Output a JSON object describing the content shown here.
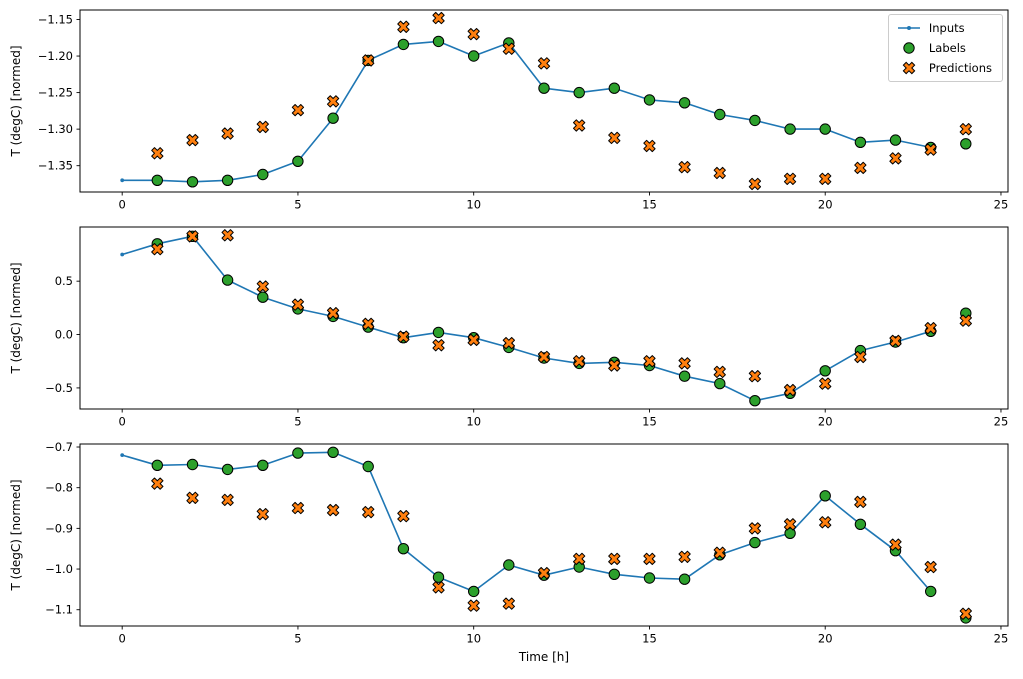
{
  "figure": {
    "xlabel": "Time [h]",
    "background": "#ffffff",
    "axes_edge_color": "#000000",
    "legend": {
      "items": [
        {
          "label": "Inputs",
          "marker": "line-with-dot",
          "color": "#1f77b4"
        },
        {
          "label": "Labels",
          "marker": "circle",
          "color": "#2ca02c",
          "edge": "#000000"
        },
        {
          "label": "Predictions",
          "marker": "X",
          "color": "#ff7f0e",
          "edge": "#000000"
        }
      ]
    }
  },
  "chart_data": [
    {
      "type": "line",
      "title": "",
      "xlabel": "",
      "ylabel": "T (degC) [normed]",
      "xlim": [
        -1.2,
        25.2
      ],
      "ylim": [
        -1.386,
        -1.137
      ],
      "xticks": {
        "values": [
          0,
          5,
          10,
          15,
          20,
          25
        ],
        "labels": [
          "0",
          "5",
          "10",
          "15",
          "20",
          "25"
        ]
      },
      "yticks": {
        "values": [
          -1.15,
          -1.2,
          -1.25,
          -1.3,
          -1.35
        ],
        "labels": [
          "−1.15",
          "−1.20",
          "−1.25",
          "−1.30",
          "−1.35"
        ]
      },
      "grid": false,
      "legend_position": "upper right",
      "series": [
        {
          "name": "Inputs",
          "plot": "line",
          "color": "#1f77b4",
          "x": [
            0,
            1,
            2,
            3,
            4,
            5,
            6,
            7,
            8,
            9,
            10,
            11,
            12,
            13,
            14,
            15,
            16,
            17,
            18,
            19,
            20,
            21,
            22,
            23
          ],
          "y": [
            -1.37,
            -1.37,
            -1.372,
            -1.37,
            -1.362,
            -1.344,
            -1.285,
            -1.206,
            -1.184,
            -1.18,
            -1.2,
            -1.182,
            -1.244,
            -1.25,
            -1.244,
            -1.26,
            -1.264,
            -1.28,
            -1.288,
            -1.3,
            -1.3,
            -1.318,
            -1.315,
            -1.325
          ]
        },
        {
          "name": "Labels",
          "plot": "scatter",
          "marker": "circle",
          "color": "#2ca02c",
          "edge": "#000000",
          "x": [
            1,
            2,
            3,
            4,
            5,
            6,
            7,
            8,
            9,
            10,
            11,
            12,
            13,
            14,
            15,
            16,
            17,
            18,
            19,
            20,
            21,
            22,
            23,
            24
          ],
          "y": [
            -1.37,
            -1.372,
            -1.37,
            -1.362,
            -1.344,
            -1.285,
            -1.206,
            -1.184,
            -1.18,
            -1.2,
            -1.182,
            -1.244,
            -1.25,
            -1.244,
            -1.26,
            -1.264,
            -1.28,
            -1.288,
            -1.3,
            -1.3,
            -1.318,
            -1.315,
            -1.325,
            -1.32
          ]
        },
        {
          "name": "Predictions",
          "plot": "scatter",
          "marker": "X",
          "color": "#ff7f0e",
          "edge": "#000000",
          "x": [
            1,
            2,
            3,
            4,
            5,
            6,
            7,
            8,
            9,
            10,
            11,
            12,
            13,
            14,
            15,
            16,
            17,
            18,
            19,
            20,
            21,
            22,
            23,
            24
          ],
          "y": [
            -1.333,
            -1.315,
            -1.306,
            -1.297,
            -1.274,
            -1.262,
            -1.206,
            -1.16,
            -1.148,
            -1.17,
            -1.19,
            -1.21,
            -1.295,
            -1.312,
            -1.323,
            -1.352,
            -1.36,
            -1.375,
            -1.368,
            -1.368,
            -1.353,
            -1.34,
            -1.328,
            -1.3
          ]
        }
      ]
    },
    {
      "type": "line",
      "title": "",
      "xlabel": "",
      "ylabel": "T (degC) [normed]",
      "xlim": [
        -1.2,
        25.2
      ],
      "ylim": [
        -0.6975,
        1.0075
      ],
      "xticks": {
        "values": [
          0,
          5,
          10,
          15,
          20,
          25
        ],
        "labels": [
          "0",
          "5",
          "10",
          "15",
          "20",
          "25"
        ]
      },
      "yticks": {
        "values": [
          0.5,
          0.0,
          -0.5
        ],
        "labels": [
          "0.5",
          "0.0",
          "−0.5"
        ]
      },
      "grid": false,
      "series": [
        {
          "name": "Inputs",
          "plot": "line",
          "color": "#1f77b4",
          "x": [
            0,
            1,
            2,
            3,
            4,
            5,
            6,
            7,
            8,
            9,
            10,
            11,
            12,
            13,
            14,
            15,
            16,
            17,
            18,
            19,
            20,
            21,
            22,
            23
          ],
          "y": [
            0.75,
            0.85,
            0.92,
            0.51,
            0.35,
            0.24,
            0.17,
            0.07,
            -0.03,
            0.02,
            -0.03,
            -0.12,
            -0.22,
            -0.27,
            -0.26,
            -0.29,
            -0.39,
            -0.46,
            -0.62,
            -0.55,
            -0.34,
            -0.15,
            -0.07,
            0.03
          ]
        },
        {
          "name": "Labels",
          "plot": "scatter",
          "marker": "circle",
          "color": "#2ca02c",
          "edge": "#000000",
          "x": [
            1,
            2,
            3,
            4,
            5,
            6,
            7,
            8,
            9,
            10,
            11,
            12,
            13,
            14,
            15,
            16,
            17,
            18,
            19,
            20,
            21,
            22,
            23,
            24
          ],
          "y": [
            0.85,
            0.92,
            0.51,
            0.35,
            0.24,
            0.17,
            0.07,
            -0.03,
            0.02,
            -0.03,
            -0.12,
            -0.22,
            -0.27,
            -0.26,
            -0.29,
            -0.39,
            -0.46,
            -0.62,
            -0.55,
            -0.34,
            -0.15,
            -0.07,
            0.03,
            0.2
          ]
        },
        {
          "name": "Predictions",
          "plot": "scatter",
          "marker": "X",
          "color": "#ff7f0e",
          "edge": "#000000",
          "x": [
            1,
            2,
            3,
            4,
            5,
            6,
            7,
            8,
            9,
            10,
            11,
            12,
            13,
            14,
            15,
            16,
            17,
            18,
            19,
            20,
            21,
            22,
            23,
            24
          ],
          "y": [
            0.8,
            0.92,
            0.93,
            0.45,
            0.28,
            0.2,
            0.1,
            -0.02,
            -0.1,
            -0.05,
            -0.08,
            -0.21,
            -0.25,
            -0.29,
            -0.25,
            -0.27,
            -0.35,
            -0.39,
            -0.52,
            -0.46,
            -0.21,
            -0.06,
            0.06,
            0.13
          ]
        }
      ]
    },
    {
      "type": "line",
      "title": "",
      "xlabel": "Time [h]",
      "ylabel": "T (degC) [normed]",
      "xlim": [
        -1.2,
        25.2
      ],
      "ylim": [
        -1.14,
        -0.6926
      ],
      "xticks": {
        "values": [
          0,
          5,
          10,
          15,
          20,
          25
        ],
        "labels": [
          "0",
          "5",
          "10",
          "15",
          "20",
          "25"
        ]
      },
      "yticks": {
        "values": [
          -0.7,
          -0.8,
          -0.9,
          -1.0,
          -1.1
        ],
        "labels": [
          "−0.7",
          "−0.8",
          "−0.9",
          "−1.0",
          "−1.1"
        ]
      },
      "grid": false,
      "series": [
        {
          "name": "Inputs",
          "plot": "line",
          "color": "#1f77b4",
          "x": [
            0,
            1,
            2,
            3,
            4,
            5,
            6,
            7,
            8,
            9,
            10,
            11,
            12,
            13,
            14,
            15,
            16,
            17,
            18,
            19,
            20,
            21,
            22,
            23
          ],
          "y": [
            -0.72,
            -0.745,
            -0.743,
            -0.755,
            -0.745,
            -0.715,
            -0.713,
            -0.748,
            -0.95,
            -1.02,
            -1.055,
            -0.99,
            -1.015,
            -0.995,
            -1.013,
            -1.022,
            -1.025,
            -0.965,
            -0.935,
            -0.912,
            -0.82,
            -0.89,
            -0.955,
            -1.055
          ]
        },
        {
          "name": "Labels",
          "plot": "scatter",
          "marker": "circle",
          "color": "#2ca02c",
          "edge": "#000000",
          "x": [
            1,
            2,
            3,
            4,
            5,
            6,
            7,
            8,
            9,
            10,
            11,
            12,
            13,
            14,
            15,
            16,
            17,
            18,
            19,
            20,
            21,
            22,
            23,
            24
          ],
          "y": [
            -0.745,
            -0.743,
            -0.755,
            -0.745,
            -0.715,
            -0.713,
            -0.748,
            -0.95,
            -1.02,
            -1.055,
            -0.99,
            -1.015,
            -0.995,
            -1.013,
            -1.022,
            -1.025,
            -0.965,
            -0.935,
            -0.912,
            -0.82,
            -0.89,
            -0.955,
            -1.055,
            -1.12
          ]
        },
        {
          "name": "Predictions",
          "plot": "scatter",
          "marker": "X",
          "color": "#ff7f0e",
          "edge": "#000000",
          "x": [
            1,
            2,
            3,
            4,
            5,
            6,
            7,
            8,
            9,
            10,
            11,
            12,
            13,
            14,
            15,
            16,
            17,
            18,
            19,
            20,
            21,
            22,
            23,
            24
          ],
          "y": [
            -0.79,
            -0.825,
            -0.83,
            -0.865,
            -0.85,
            -0.855,
            -0.86,
            -0.87,
            -1.045,
            -1.09,
            -1.085,
            -1.01,
            -0.975,
            -0.975,
            -0.975,
            -0.97,
            -0.96,
            -0.9,
            -0.89,
            -0.885,
            -0.835,
            -0.94,
            -0.995,
            -1.11
          ]
        }
      ]
    }
  ]
}
